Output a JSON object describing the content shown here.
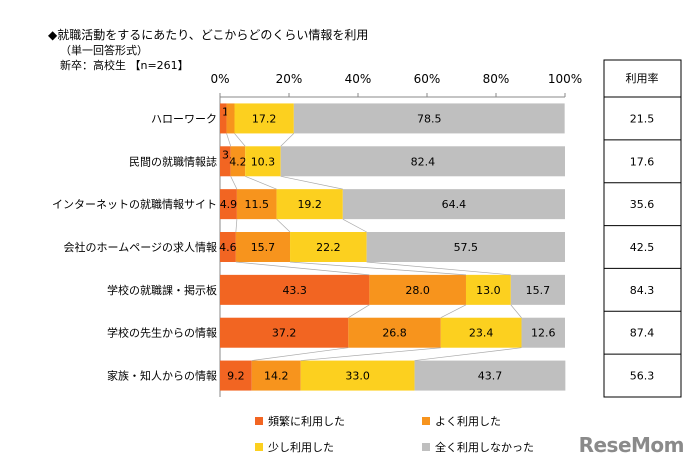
{
  "chart_data": {
    "type": "bar",
    "stacked": true,
    "orientation": "horizontal",
    "title": "◆就職活動をするにあたり、どこからどのくらい情報を利用",
    "subtitle": "（単一回答形式）",
    "sample": "新卒：高校生 【n=261】",
    "xlim": [
      0,
      100
    ],
    "xticks": [
      "0%",
      "20%",
      "40%",
      "60%",
      "80%",
      "100%"
    ],
    "categories": [
      "ハローワーク",
      "民間の就職情報誌",
      "インターネットの就職情報サイト",
      "会社のホームページの求人情報",
      "学校の就職課・掲示板",
      "学校の先生からの情報",
      "家族・知人からの情報"
    ],
    "series": [
      {
        "name": "頻繁に利用した",
        "color": "#f26522",
        "values": [
          1.9,
          3.1,
          4.9,
          4.6,
          43.3,
          37.2,
          9.2
        ]
      },
      {
        "name": "よく利用した",
        "color": "#f7941d",
        "values": [
          2.3,
          4.2,
          11.5,
          15.7,
          28.0,
          26.8,
          14.2
        ]
      },
      {
        "name": "少し利用した",
        "color": "#fcd01f",
        "values": [
          17.2,
          10.3,
          19.2,
          22.2,
          13.0,
          23.4,
          33.0
        ]
      },
      {
        "name": "全く利用しなかった",
        "color": "#bfbfbf",
        "values": [
          78.5,
          82.4,
          64.4,
          57.5,
          15.7,
          12.6,
          43.7
        ]
      }
    ],
    "usage_rate": {
      "header": "利用率",
      "values": [
        "21.5",
        "17.6",
        "35.6",
        "42.5",
        "84.3",
        "87.4",
        "56.3"
      ]
    },
    "legend_position": "bottom"
  },
  "logo": "ReseMom"
}
